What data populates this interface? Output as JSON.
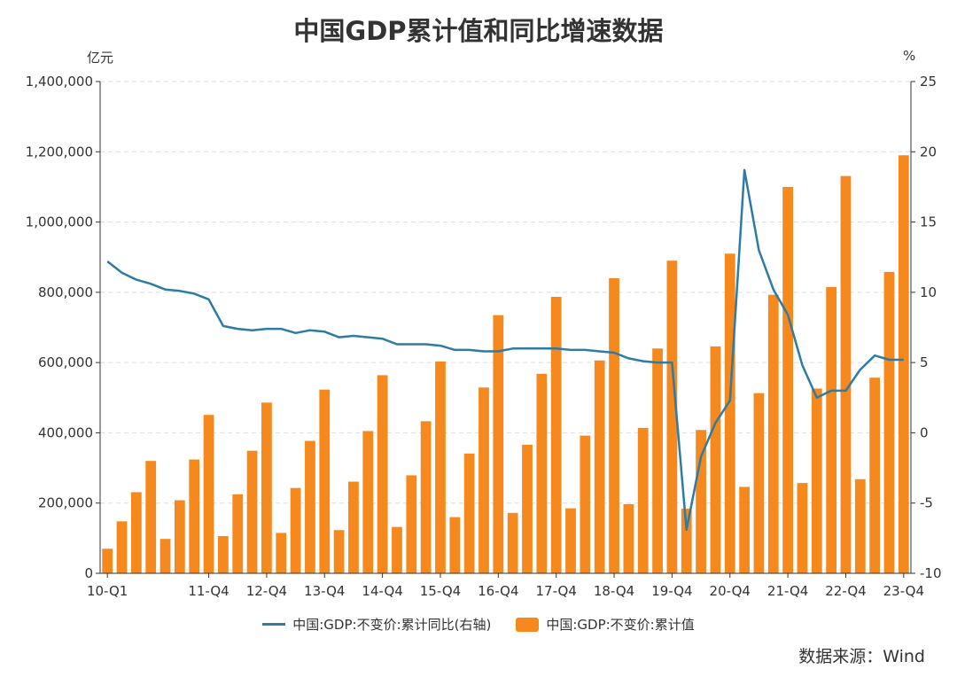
{
  "chart_data": {
    "type": "bar",
    "title": "中国GDP累计值和同比增速数据",
    "left_axis_unit": "亿元",
    "right_axis_unit": "%",
    "left_axis": {
      "min": 0,
      "max": 1400000,
      "ticks": [
        0,
        200000,
        400000,
        600000,
        800000,
        1000000,
        1200000,
        1400000
      ],
      "tick_labels": [
        "0",
        "200,000",
        "400,000",
        "600,000",
        "800,000",
        "1,000,000",
        "1,200,000",
        "1,400,000"
      ]
    },
    "right_axis": {
      "min": -10,
      "max": 25,
      "ticks": [
        -10,
        -5,
        0,
        5,
        10,
        15,
        20,
        25
      ],
      "tick_labels": [
        "-10",
        "-5",
        "0",
        "5",
        "10",
        "15",
        "20",
        "25"
      ]
    },
    "x_tick_labels": [
      {
        "index": 0,
        "label": "10-Q1"
      },
      {
        "index": 7,
        "label": "11-Q4"
      },
      {
        "index": 11,
        "label": "12-Q4"
      },
      {
        "index": 15,
        "label": "13-Q4"
      },
      {
        "index": 19,
        "label": "14-Q4"
      },
      {
        "index": 23,
        "label": "15-Q4"
      },
      {
        "index": 27,
        "label": "16-Q4"
      },
      {
        "index": 31,
        "label": "17-Q4"
      },
      {
        "index": 35,
        "label": "18-Q4"
      },
      {
        "index": 39,
        "label": "19-Q4"
      },
      {
        "index": 43,
        "label": "20-Q4"
      },
      {
        "index": 47,
        "label": "21-Q4"
      },
      {
        "index": 51,
        "label": "22-Q4"
      },
      {
        "index": 55,
        "label": "23-Q4"
      }
    ],
    "grid": true,
    "legend_position": "bottom",
    "series": [
      {
        "name": "中国:GDP:不变价:累计同比(右轴)",
        "type": "line",
        "axis": "right",
        "color": "#2E7BA3",
        "values": [
          12.2,
          11.4,
          10.9,
          10.6,
          10.2,
          10.1,
          9.9,
          9.5,
          7.6,
          7.4,
          7.3,
          7.4,
          7.4,
          7.1,
          7.3,
          7.2,
          6.8,
          6.9,
          6.8,
          6.7,
          6.3,
          6.3,
          6.3,
          6.2,
          5.9,
          5.9,
          5.8,
          5.8,
          6.0,
          6.0,
          6.0,
          6.0,
          5.9,
          5.9,
          5.8,
          5.7,
          5.3,
          5.1,
          5.0,
          5.0,
          -6.9,
          -1.7,
          0.7,
          2.3,
          18.7,
          13.0,
          10.2,
          8.4,
          4.8,
          2.5,
          3.0,
          3.0,
          4.5,
          5.5,
          5.2,
          5.2
        ]
      },
      {
        "name": "中国:GDP:不变价:累计值",
        "type": "bar",
        "axis": "left",
        "color": "#F5891E",
        "values": [
          70000,
          148000,
          231000,
          320000,
          98000,
          208000,
          324000,
          451000,
          106000,
          225000,
          349000,
          486000,
          115000,
          243000,
          377000,
          523000,
          123000,
          261000,
          405000,
          564000,
          132000,
          279000,
          433000,
          603000,
          160000,
          341000,
          529000,
          735000,
          172000,
          366000,
          568000,
          787000,
          185000,
          392000,
          606000,
          840000,
          197000,
          414000,
          640000,
          890000,
          184000,
          408000,
          646000,
          910000,
          246000,
          513000,
          793000,
          1100000,
          257000,
          526000,
          815000,
          1131000,
          268000,
          557000,
          858000,
          1190000
        ]
      }
    ]
  },
  "source_text": "数据来源：Wind"
}
